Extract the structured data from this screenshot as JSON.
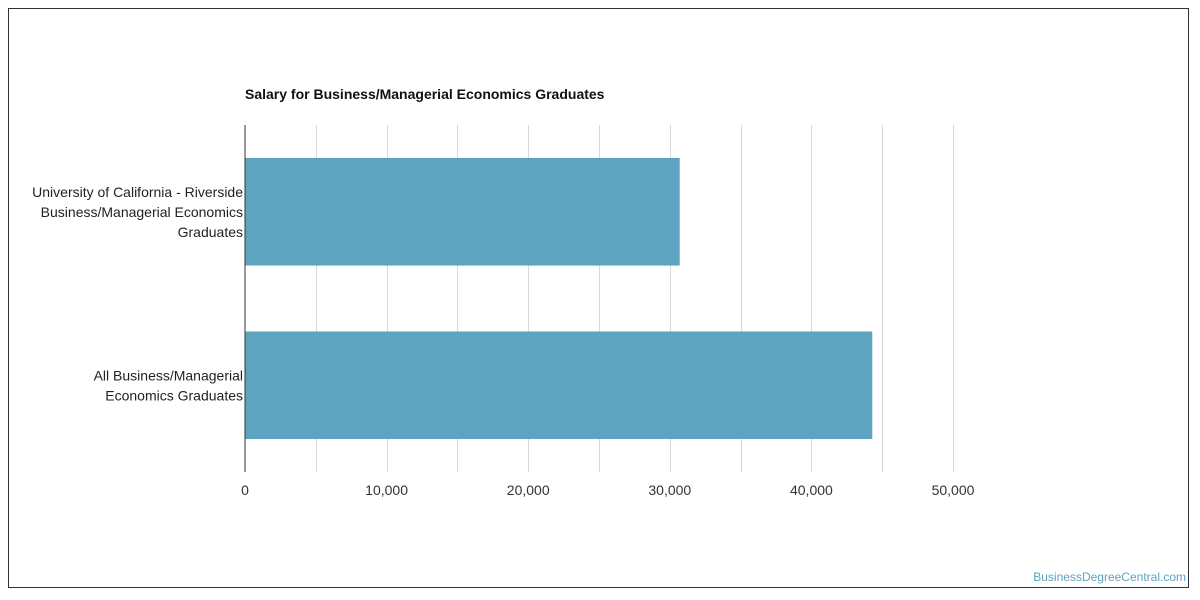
{
  "chart_data": {
    "type": "bar",
    "orientation": "horizontal",
    "title": "Salary for Business/Managerial Economics Graduates",
    "categories": [
      [
        "University of California - Riverside",
        "Business/Managerial Economics",
        "Graduates"
      ],
      [
        "All Business/Managerial",
        "Economics Graduates"
      ]
    ],
    "values": [
      30700,
      44300
    ],
    "xlim": [
      0,
      50000
    ],
    "xticks": [
      0,
      10000,
      20000,
      30000,
      40000,
      50000
    ],
    "xtick_labels": [
      "0",
      "10,000",
      "20,000",
      "30,000",
      "40,000",
      "50,000"
    ],
    "grid": true,
    "bar_color": "#5ea3c0"
  },
  "watermark": "BusinessDegreeCentral.com"
}
